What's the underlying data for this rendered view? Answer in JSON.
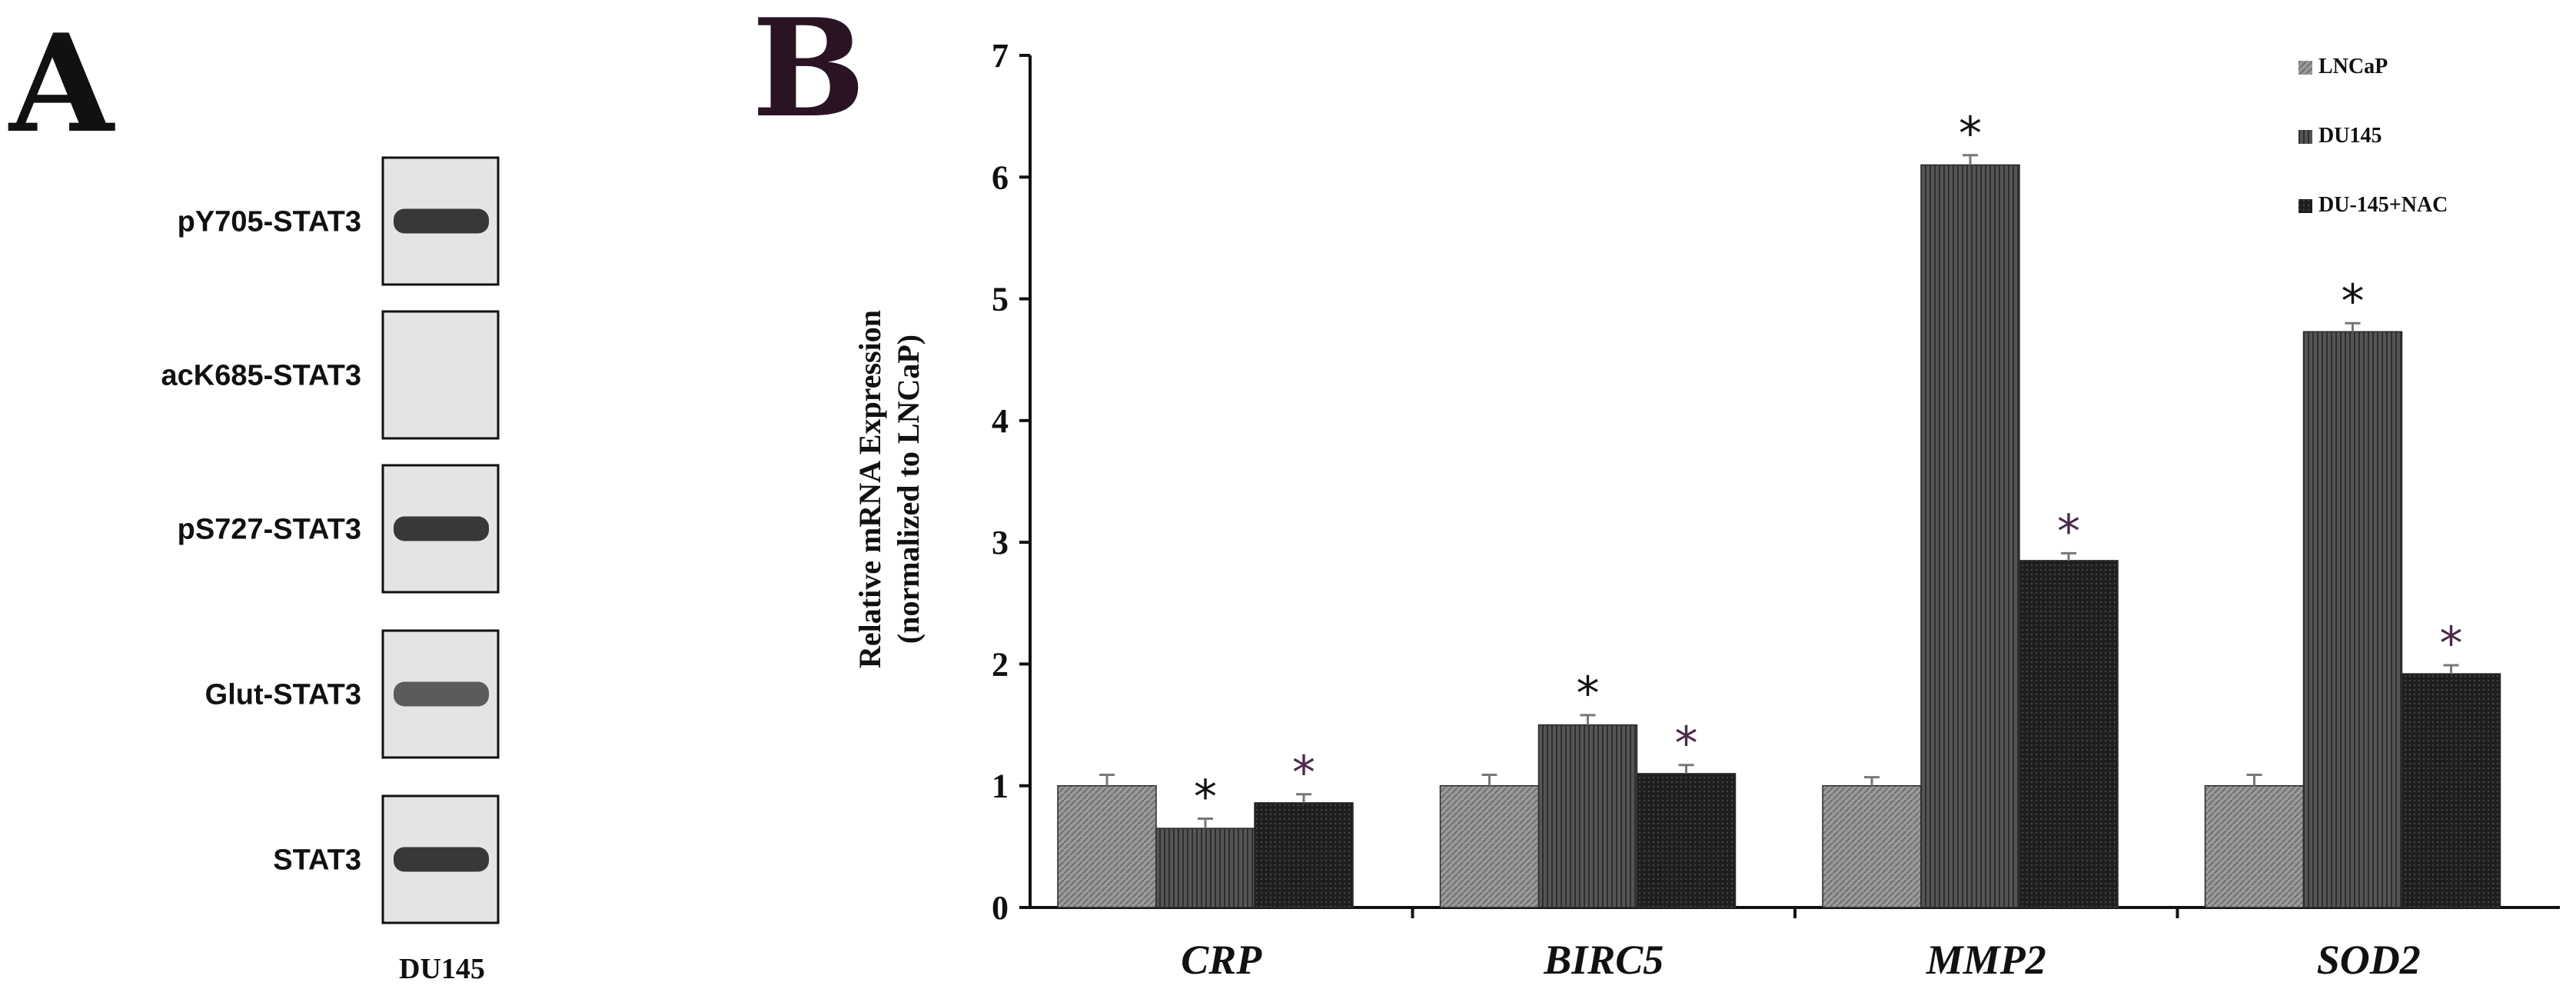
{
  "panel_a": {
    "letter": "A",
    "lane_label": "DU145",
    "blots": [
      {
        "label": "pY705-STAT3",
        "band": "strong"
      },
      {
        "label": "acK685-STAT3",
        "band": "none"
      },
      {
        "label": "pS727-STAT3",
        "band": "strong"
      },
      {
        "label": "Glut-STAT3",
        "band": "medium"
      },
      {
        "label": "STAT3",
        "band": "strong"
      }
    ]
  },
  "panel_b": {
    "letter": "B",
    "colors": {
      "letter": "#2a1424",
      "bar_lncap": "#8c8c8c",
      "bar_du145": "#4a4a4a",
      "bar_nac": "#1c1c1c",
      "star_black": "#111111",
      "star_purple": "#4b2a4b"
    }
  },
  "chart_data": {
    "type": "bar",
    "title": "",
    "xlabel": "",
    "ylabel": [
      "Relative mRNA Expression",
      "(normalized to LNCaP)"
    ],
    "ylim": [
      0,
      7
    ],
    "yticks": [
      "0",
      "1",
      "2",
      "3",
      "4",
      "5",
      "6",
      "7"
    ],
    "grid": false,
    "legend_position": "top-right",
    "categories": [
      "CRP",
      "BIRC5",
      "MMP2",
      "SOD2"
    ],
    "series": [
      {
        "name": "LNCaP",
        "values": [
          1.0,
          1.0,
          1.0,
          1.0
        ],
        "errors": [
          0.09,
          0.09,
          0.07,
          0.09
        ],
        "significant": [
          false,
          false,
          false,
          false
        ]
      },
      {
        "name": "DU145",
        "values": [
          0.65,
          1.5,
          6.1,
          4.73
        ],
        "errors": [
          0.08,
          0.08,
          0.08,
          0.07
        ],
        "significant": [
          true,
          true,
          true,
          true
        ]
      },
      {
        "name": "DU-145+NAC",
        "values": [
          0.86,
          1.1,
          2.85,
          1.92
        ],
        "errors": [
          0.07,
          0.07,
          0.06,
          0.07
        ],
        "significant": [
          true,
          true,
          true,
          true
        ]
      }
    ],
    "significance_marker": "*"
  }
}
